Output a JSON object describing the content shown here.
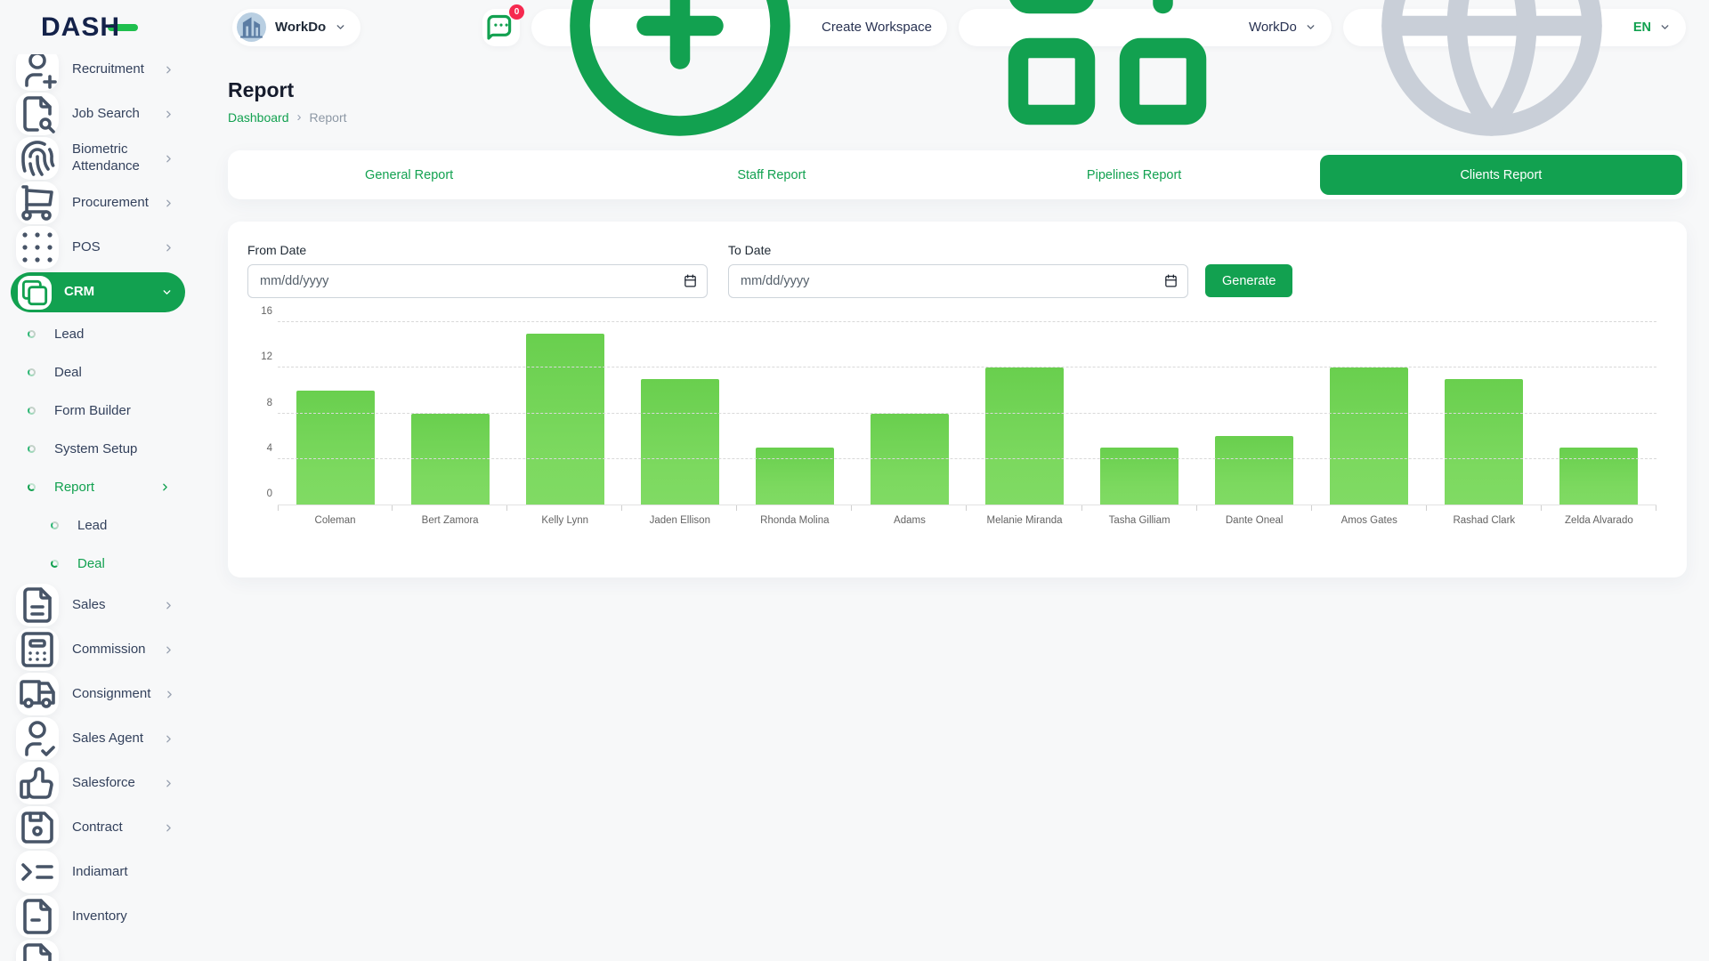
{
  "page": {
    "title": "Report",
    "breadcrumb": [
      "Dashboard",
      "Report"
    ],
    "breadcrumb_separator": "›"
  },
  "header": {
    "logo_text": "DASH",
    "workspace_selector": {
      "label": "WorkDo",
      "icon": "building-icon"
    },
    "messages": {
      "icon": "message-dots-icon",
      "badge": "0"
    },
    "create_workspace": {
      "label": "Create Workspace",
      "icon": "plus-circle-icon"
    },
    "workdo_menu": {
      "label": "WorkDo",
      "icon": "grid-plus-icon"
    },
    "language": {
      "label": "EN",
      "icon": "globe-icon"
    }
  },
  "sidebar": {
    "items": [
      {
        "label": "Recruitment",
        "icon": "user-plus-icon",
        "level": 0,
        "chevron": "right"
      },
      {
        "label": "Job Search",
        "icon": "file-search-icon",
        "level": 0,
        "chevron": "right"
      },
      {
        "label": "Biometric Attendance",
        "icon": "fingerprint-icon",
        "level": 0,
        "chevron": "right"
      },
      {
        "label": "Procurement",
        "icon": "cart-icon",
        "level": 0,
        "chevron": "right"
      },
      {
        "label": "POS",
        "icon": "grid-dots-icon",
        "level": 0,
        "chevron": "right"
      },
      {
        "label": "CRM",
        "icon": "crm-icon",
        "level": 0,
        "chevron": "down",
        "active": true
      },
      {
        "label": "Lead",
        "level": 1
      },
      {
        "label": "Deal",
        "level": 1
      },
      {
        "label": "Form Builder",
        "level": 1
      },
      {
        "label": "System Setup",
        "level": 1
      },
      {
        "label": "Report",
        "level": 1,
        "active": true,
        "chevron": "right"
      },
      {
        "label": "Lead",
        "level": 2
      },
      {
        "label": "Deal",
        "level": 2,
        "active": true
      },
      {
        "label": "Sales",
        "icon": "file-text-icon",
        "level": 0,
        "chevron": "right"
      },
      {
        "label": "Commission",
        "icon": "calculator-icon",
        "level": 0,
        "chevron": "right"
      },
      {
        "label": "Consignment",
        "icon": "truck-icon",
        "level": 0,
        "chevron": "right"
      },
      {
        "label": "Sales Agent",
        "icon": "user-check-icon",
        "level": 0,
        "chevron": "right"
      },
      {
        "label": "Salesforce",
        "icon": "thumb-up-icon",
        "level": 0,
        "chevron": "right"
      },
      {
        "label": "Contract",
        "icon": "floppy-icon",
        "level": 0,
        "chevron": "right"
      },
      {
        "label": "Indiamart",
        "icon": "list-arrow-icon",
        "level": 0
      },
      {
        "label": "Inventory",
        "icon": "file-icon",
        "level": 0
      },
      {
        "label": "",
        "icon": "file-icon",
        "level": 0,
        "partial": true
      }
    ]
  },
  "tabs": {
    "items": [
      "General Report",
      "Staff Report",
      "Pipelines Report",
      "Clients Report"
    ],
    "active_index": 3
  },
  "form": {
    "from_label": "From Date",
    "to_label": "To Date",
    "date_placeholder": "mm/dd/yyyy",
    "generate_label": "Generate",
    "calendar_icon": "calendar-icon"
  },
  "chart_data": {
    "type": "bar",
    "title": "",
    "categories": [
      "Coleman",
      "Bert Zamora",
      "Kelly Lynn",
      "Jaden Ellison",
      "Rhonda Molina",
      "Adams",
      "Melanie Miranda",
      "Tasha Gilliam",
      "Dante Oneal",
      "Amos Gates",
      "Rashad Clark",
      "Zelda Alvarado"
    ],
    "values": [
      10,
      8,
      15,
      11,
      5,
      8,
      12,
      5,
      6,
      12,
      11,
      5
    ],
    "xlabel": "",
    "ylabel": "",
    "ylim": [
      0,
      16
    ],
    "yticks": [
      0,
      4,
      8,
      12,
      16
    ],
    "grid": "horizontal-dashed",
    "legend": false,
    "bar_color": "#71d45b"
  },
  "colors": {
    "accent_green": "#12a150",
    "bar_green": "#71d45b",
    "badge_red": "#f6294f"
  }
}
